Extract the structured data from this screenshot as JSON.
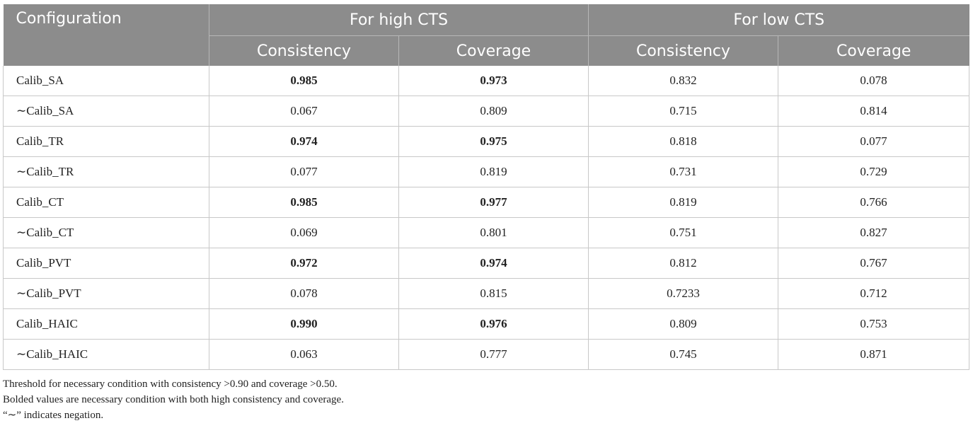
{
  "header": {
    "config": "Configuration",
    "group_high": "For high CTS",
    "group_low": "For low CTS",
    "consistency": "Consistency",
    "coverage": "Coverage"
  },
  "rows": [
    {
      "config": "Calib_SA",
      "hc": "0.985",
      "hv": "0.973",
      "lc": "0.832",
      "lv": "0.078",
      "bold": true
    },
    {
      "config": "∼Calib_SA",
      "hc": "0.067",
      "hv": "0.809",
      "lc": "0.715",
      "lv": "0.814",
      "bold": false
    },
    {
      "config": "Calib_TR",
      "hc": "0.974",
      "hv": "0.975",
      "lc": "0.818",
      "lv": "0.077",
      "bold": true
    },
    {
      "config": "∼Calib_TR",
      "hc": "0.077",
      "hv": "0.819",
      "lc": "0.731",
      "lv": "0.729",
      "bold": false
    },
    {
      "config": "Calib_CT",
      "hc": "0.985",
      "hv": "0.977",
      "lc": "0.819",
      "lv": "0.766",
      "bold": true
    },
    {
      "config": "∼Calib_CT",
      "hc": "0.069",
      "hv": "0.801",
      "lc": "0.751",
      "lv": "0.827",
      "bold": false
    },
    {
      "config": "Calib_PVT",
      "hc": "0.972",
      "hv": "0.974",
      "lc": "0.812",
      "lv": "0.767",
      "bold": true
    },
    {
      "config": "∼Calib_PVT",
      "hc": "0.078",
      "hv": "0.815",
      "lc": "0.7233",
      "lv": "0.712",
      "bold": false
    },
    {
      "config": "Calib_HAIC",
      "hc": "0.990",
      "hv": "0.976",
      "lc": "0.809",
      "lv": "0.753",
      "bold": true
    },
    {
      "config": "∼Calib_HAIC",
      "hc": "0.063",
      "hv": "0.777",
      "lc": "0.745",
      "lv": "0.871",
      "bold": false
    }
  ],
  "notes": [
    "Threshold for necessary condition with consistency >0.90 and coverage >0.50.",
    "Bolded values are necessary condition with both high consistency and coverage.",
    "“∼” indicates negation."
  ]
}
